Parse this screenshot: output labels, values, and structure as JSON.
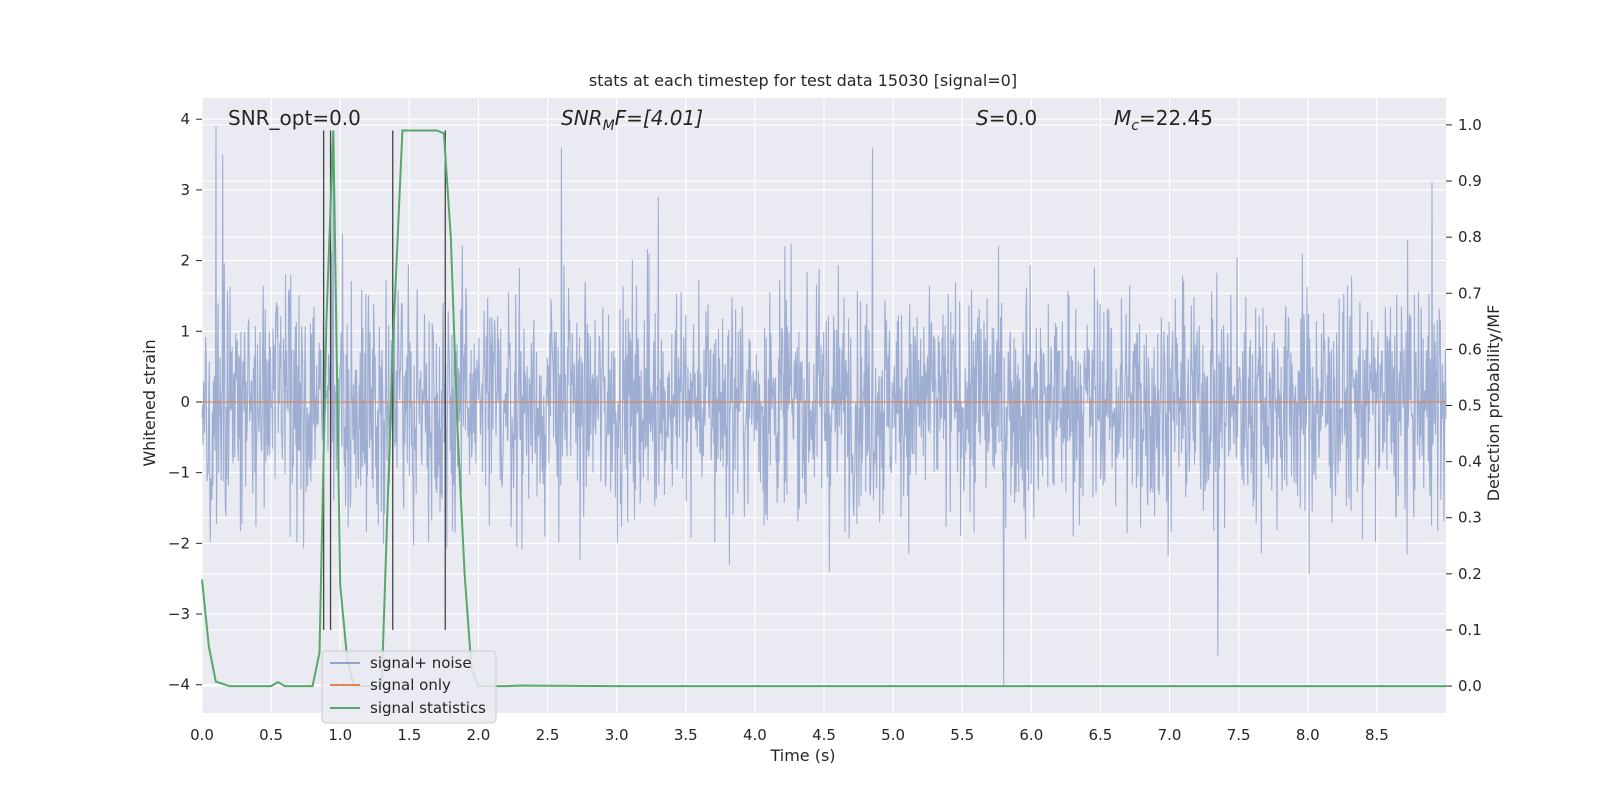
{
  "chart_data": {
    "type": "line",
    "title": "stats at each timestep for test data 15030 [signal=0]",
    "xlabel": "Time (s)",
    "ylabel": "Whitened strain",
    "y2label": "Detection probability/MF",
    "xlim": [
      0,
      9
    ],
    "ylim": [
      -4.4,
      4.3
    ],
    "y2lim": [
      -0.048,
      1.048
    ],
    "xticks": [
      "0.0",
      "0.5",
      "1.0",
      "1.5",
      "2.0",
      "2.5",
      "3.0",
      "3.5",
      "4.0",
      "4.5",
      "5.0",
      "5.5",
      "6.0",
      "6.5",
      "7.0",
      "7.5",
      "8.0",
      "8.5"
    ],
    "yticks": [
      "4",
      "3",
      "2",
      "1",
      "0",
      "−1",
      "−2",
      "−3",
      "−4"
    ],
    "y2ticks": [
      "1.0",
      "0.9",
      "0.8",
      "0.7",
      "0.6",
      "0.5",
      "0.4",
      "0.3",
      "0.2",
      "0.1",
      "0.0"
    ],
    "annotations": {
      "snr_opt": "SNR_opt=0.0",
      "snr_mf_main": "SNR",
      "snr_mf_sub": "M",
      "snr_mf_rest": "F=[4.01]",
      "s_label": "S",
      "s_value": "=0.0",
      "mc_label": "M",
      "mc_sub": "c",
      "mc_value": "=22.45"
    },
    "series": [
      {
        "name": "signal+ noise",
        "color": "#8fa3cc",
        "description_level": "noise",
        "amplitude_envelope": [
          1.5,
          -1.6
        ],
        "peak_times": [
          0.1,
          0.15,
          0.95,
          2.6,
          3.3,
          4.85,
          5.8,
          7.35,
          8.9
        ],
        "peak_values": [
          3.9,
          3.5,
          3.8,
          3.6,
          2.9,
          3.6,
          -4.0,
          -3.6,
          3.1
        ]
      },
      {
        "name": "signal only",
        "color": "#dd8452",
        "x": [
          0,
          9
        ],
        "y": [
          0,
          0
        ]
      },
      {
        "name": "signal statistics",
        "color": "#55a868",
        "x": [
          0,
          0.05,
          0.1,
          0.2,
          0.3,
          0.4,
          0.5,
          0.55,
          0.6,
          0.7,
          0.8,
          0.85,
          0.9,
          0.95,
          1.0,
          1.05,
          1.1,
          1.2,
          1.3,
          1.38,
          1.45,
          1.5,
          1.6,
          1.7,
          1.75,
          1.8,
          1.85,
          1.9,
          1.95,
          2.0,
          2.1,
          2.2,
          2.3,
          3.0,
          9.0
        ],
        "y": [
          0.19,
          0.07,
          0.008,
          0.0,
          0.0,
          0.0,
          0.0,
          0.007,
          0.0,
          0.0,
          0.0,
          0.06,
          0.65,
          0.99,
          0.18,
          0.05,
          0.0,
          0.0,
          0.0,
          0.6,
          0.99,
          0.99,
          0.99,
          0.99,
          0.985,
          0.8,
          0.45,
          0.2,
          0.03,
          0.0,
          0.0,
          0.0,
          0.001,
          0.0,
          0.0
        ]
      }
    ],
    "vertical_lines": {
      "color": "#444444",
      "x": [
        0.88,
        0.93,
        1.38,
        1.76
      ]
    },
    "legend": [
      "signal+ noise",
      "signal only",
      "signal statistics"
    ],
    "legend_position": "lower-left",
    "grid": true,
    "background": "#eaeaf2"
  }
}
